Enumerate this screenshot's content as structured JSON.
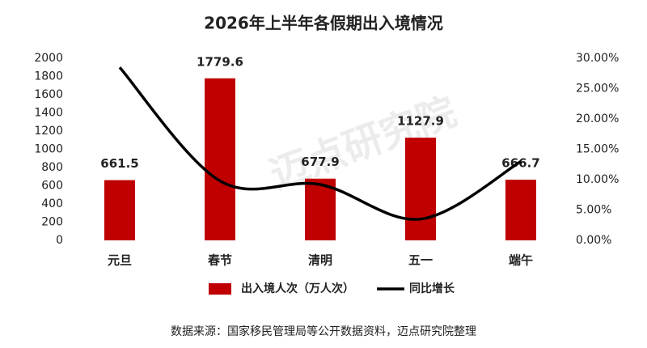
{
  "chart_data": {
    "type": "combo",
    "title": "2026年上半年各假期出入境情况",
    "categories": [
      "元旦",
      "春节",
      "清明",
      "五一",
      "端午"
    ],
    "series": [
      {
        "name": "出入境人次（万人次）",
        "type": "bar",
        "color": "#c00000",
        "values": [
          661.5,
          1779.6,
          677.9,
          1127.9,
          666.7
        ]
      },
      {
        "name": "同比增长",
        "type": "line",
        "axis": "y2",
        "color": "#000000",
        "values": [
          28.5,
          9.8,
          9.2,
          3.5,
          13.0
        ]
      }
    ],
    "ylim": [
      0,
      2000
    ],
    "yticks": [
      0,
      200,
      400,
      600,
      800,
      1000,
      1200,
      1400,
      1600,
      1800,
      2000
    ],
    "y2lim": [
      0,
      30
    ],
    "y2ticks": [
      {
        "value": 0,
        "label": "0.00%"
      },
      {
        "value": 5,
        "label": "5.00%"
      },
      {
        "value": 10,
        "label": "10.00%"
      },
      {
        "value": 15,
        "label": "15.00%"
      },
      {
        "value": 20,
        "label": "20.00%"
      },
      {
        "value": 25,
        "label": "25.00%"
      },
      {
        "value": 30,
        "label": "30.00%"
      }
    ],
    "legend": "bottom",
    "watermark": "迈点研究院",
    "source": "数据来源：国家移民管理局等公开数据资料，迈点研究院整理"
  }
}
